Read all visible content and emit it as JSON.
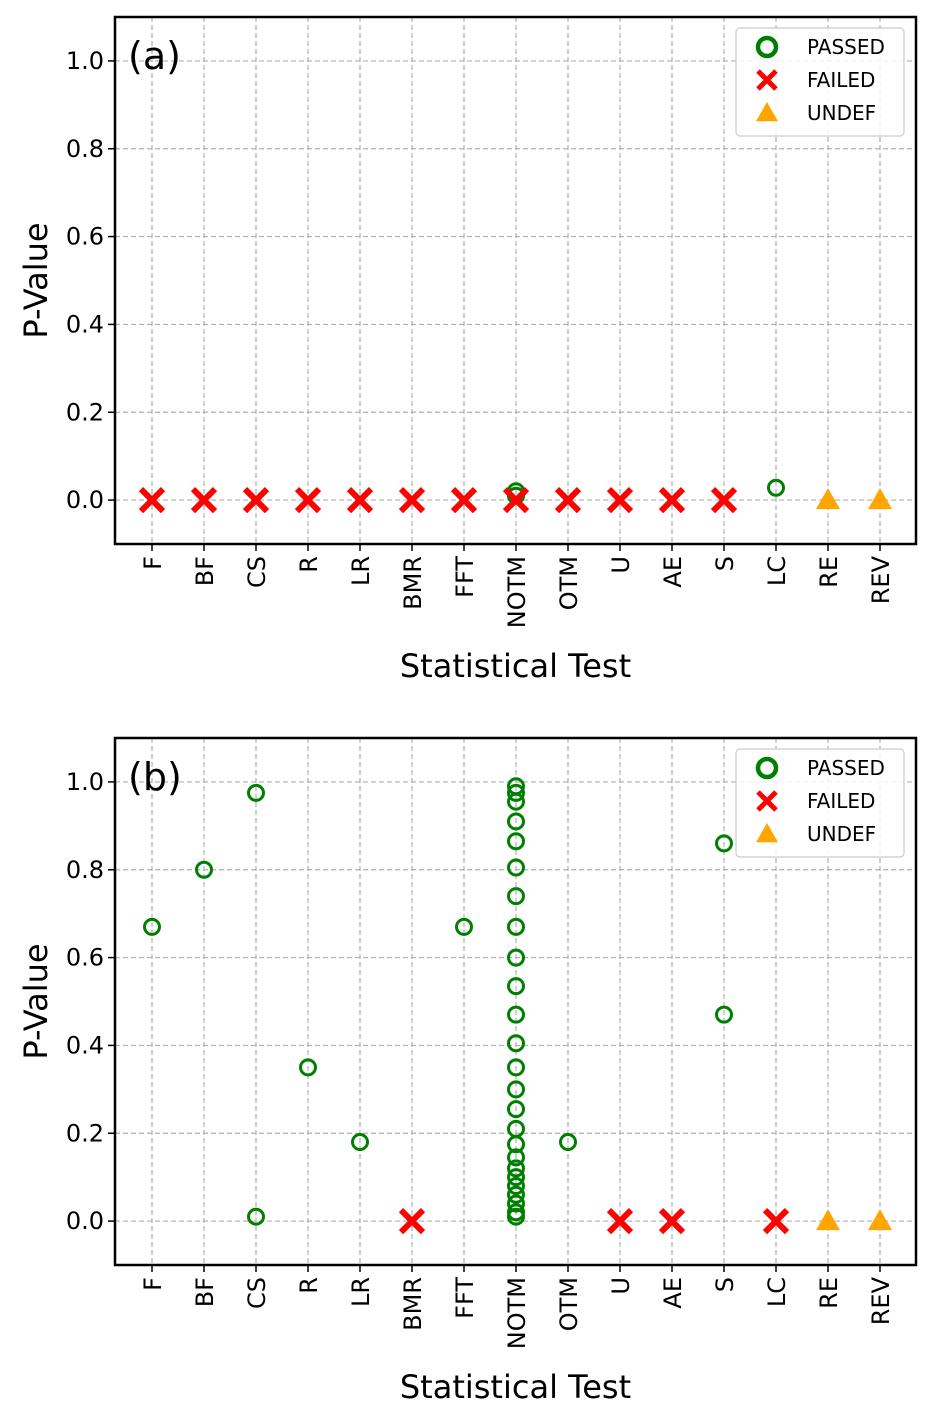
{
  "chart_data": [
    {
      "type": "scatter",
      "panel_label": "(a)",
      "xlabel": "Statistical Test",
      "ylabel": "P-Value",
      "ylim": [
        -0.1,
        1.1
      ],
      "yticks": [
        "0.0",
        "0.2",
        "0.4",
        "0.6",
        "0.8",
        "1.0"
      ],
      "categories": [
        "F",
        "BF",
        "CS",
        "R",
        "LR",
        "BMR",
        "FFT",
        "NOTM",
        "OTM",
        "U",
        "AE",
        "S",
        "LC",
        "RE",
        "REV"
      ],
      "grid": true,
      "legend": {
        "position": "top-right",
        "entries": [
          {
            "key": "passed",
            "label": "PASSED"
          },
          {
            "key": "failed",
            "label": "FAILED"
          },
          {
            "key": "undef",
            "label": "UNDEF"
          }
        ]
      },
      "colors": {
        "passed": "#008000",
        "failed": "#ff0000",
        "undef": "#ffa500"
      },
      "series": [
        {
          "name": "PASSED",
          "key": "passed",
          "points": [
            {
              "x": "NOTM",
              "y": 0.02
            },
            {
              "x": "NOTM",
              "y": 0.01
            },
            {
              "x": "LC",
              "y": 0.028
            }
          ]
        },
        {
          "name": "FAILED",
          "key": "failed",
          "points": [
            {
              "x": "F",
              "y": 0.0
            },
            {
              "x": "BF",
              "y": 0.0
            },
            {
              "x": "CS",
              "y": 0.0
            },
            {
              "x": "R",
              "y": 0.0
            },
            {
              "x": "LR",
              "y": 0.0
            },
            {
              "x": "BMR",
              "y": 0.0
            },
            {
              "x": "FFT",
              "y": 0.0
            },
            {
              "x": "NOTM",
              "y": 0.0
            },
            {
              "x": "OTM",
              "y": 0.0
            },
            {
              "x": "U",
              "y": 0.0
            },
            {
              "x": "AE",
              "y": 0.0
            },
            {
              "x": "S",
              "y": 0.0
            }
          ]
        },
        {
          "name": "UNDEF",
          "key": "undef",
          "points": [
            {
              "x": "RE",
              "y": 0.0
            },
            {
              "x": "REV",
              "y": 0.0
            }
          ]
        }
      ]
    },
    {
      "type": "scatter",
      "panel_label": "(b)",
      "xlabel": "Statistical Test",
      "ylabel": "P-Value",
      "ylim": [
        -0.1,
        1.1
      ],
      "yticks": [
        "0.0",
        "0.2",
        "0.4",
        "0.6",
        "0.8",
        "1.0"
      ],
      "categories": [
        "F",
        "BF",
        "CS",
        "R",
        "LR",
        "BMR",
        "FFT",
        "NOTM",
        "OTM",
        "U",
        "AE",
        "S",
        "LC",
        "RE",
        "REV"
      ],
      "grid": true,
      "legend": {
        "position": "top-right",
        "entries": [
          {
            "key": "passed",
            "label": "PASSED"
          },
          {
            "key": "failed",
            "label": "FAILED"
          },
          {
            "key": "undef",
            "label": "UNDEF"
          }
        ]
      },
      "colors": {
        "passed": "#008000",
        "failed": "#ff0000",
        "undef": "#ffa500"
      },
      "series": [
        {
          "name": "PASSED",
          "key": "passed",
          "points": [
            {
              "x": "F",
              "y": 0.67
            },
            {
              "x": "BF",
              "y": 0.8
            },
            {
              "x": "CS",
              "y": 0.975
            },
            {
              "x": "CS",
              "y": 0.01
            },
            {
              "x": "R",
              "y": 0.35
            },
            {
              "x": "LR",
              "y": 0.18
            },
            {
              "x": "FFT",
              "y": 0.67
            },
            {
              "x": "NOTM",
              "y": 0.99
            },
            {
              "x": "NOTM",
              "y": 0.975
            },
            {
              "x": "NOTM",
              "y": 0.955
            },
            {
              "x": "NOTM",
              "y": 0.91
            },
            {
              "x": "NOTM",
              "y": 0.865
            },
            {
              "x": "NOTM",
              "y": 0.805
            },
            {
              "x": "NOTM",
              "y": 0.74
            },
            {
              "x": "NOTM",
              "y": 0.67
            },
            {
              "x": "NOTM",
              "y": 0.6
            },
            {
              "x": "NOTM",
              "y": 0.535
            },
            {
              "x": "NOTM",
              "y": 0.47
            },
            {
              "x": "NOTM",
              "y": 0.405
            },
            {
              "x": "NOTM",
              "y": 0.35
            },
            {
              "x": "NOTM",
              "y": 0.3
            },
            {
              "x": "NOTM",
              "y": 0.255
            },
            {
              "x": "NOTM",
              "y": 0.21
            },
            {
              "x": "NOTM",
              "y": 0.175
            },
            {
              "x": "NOTM",
              "y": 0.145
            },
            {
              "x": "NOTM",
              "y": 0.12
            },
            {
              "x": "NOTM",
              "y": 0.1
            },
            {
              "x": "NOTM",
              "y": 0.08
            },
            {
              "x": "NOTM",
              "y": 0.06
            },
            {
              "x": "NOTM",
              "y": 0.04
            },
            {
              "x": "NOTM",
              "y": 0.02
            },
            {
              "x": "NOTM",
              "y": 0.01
            },
            {
              "x": "OTM",
              "y": 0.18
            },
            {
              "x": "S",
              "y": 0.86
            },
            {
              "x": "S",
              "y": 0.47
            }
          ]
        },
        {
          "name": "FAILED",
          "key": "failed",
          "points": [
            {
              "x": "BMR",
              "y": 0.0
            },
            {
              "x": "U",
              "y": 0.0
            },
            {
              "x": "AE",
              "y": 0.0
            },
            {
              "x": "LC",
              "y": 0.0
            }
          ]
        },
        {
          "name": "UNDEF",
          "key": "undef",
          "points": [
            {
              "x": "RE",
              "y": 0.0
            },
            {
              "x": "REV",
              "y": 0.0
            }
          ]
        }
      ]
    }
  ]
}
